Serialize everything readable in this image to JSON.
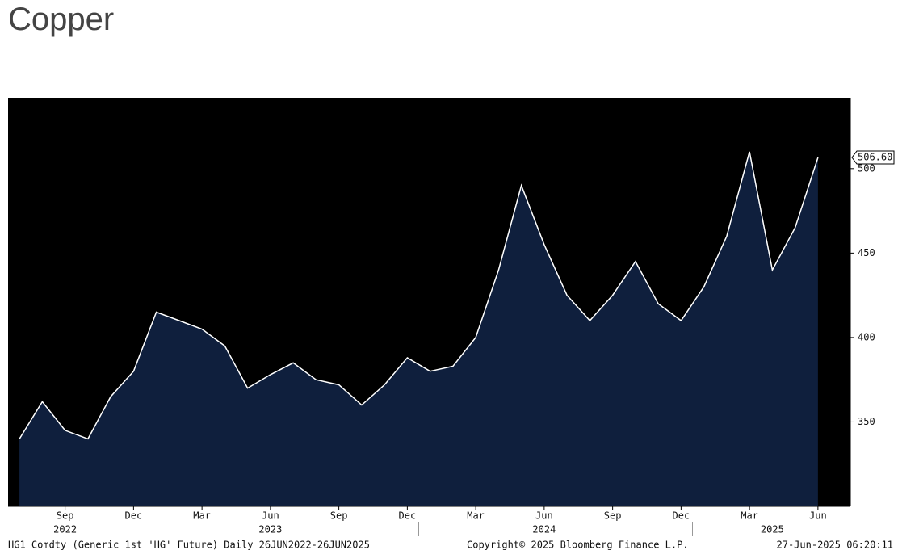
{
  "chart_data": {
    "type": "area",
    "title": "Copper",
    "x": [
      "2022-07",
      "2022-08",
      "2022-09",
      "2022-10",
      "2022-11",
      "2022-12",
      "2023-01",
      "2023-02",
      "2023-03",
      "2023-04",
      "2023-05",
      "2023-06",
      "2023-07",
      "2023-08",
      "2023-09",
      "2023-10",
      "2023-11",
      "2023-12",
      "2024-01",
      "2024-02",
      "2024-03",
      "2024-04",
      "2024-05",
      "2024-06",
      "2024-07",
      "2024-08",
      "2024-09",
      "2024-10",
      "2024-11",
      "2024-12",
      "2025-01",
      "2025-02",
      "2025-03",
      "2025-04",
      "2025-05",
      "2025-06"
    ],
    "values": [
      340,
      362,
      345,
      340,
      365,
      380,
      415,
      410,
      405,
      395,
      370,
      378,
      385,
      375,
      372,
      360,
      372,
      388,
      380,
      383,
      400,
      440,
      490,
      455,
      425,
      410,
      425,
      445,
      420,
      410,
      430,
      460,
      510,
      440,
      465,
      506.6
    ],
    "last_value_label": "506.60",
    "color": "#0f1f3d",
    "line_color": "#ffffff",
    "ylim": [
      300,
      542
    ],
    "yticks": [
      350,
      400,
      450,
      500
    ],
    "xticks": [
      {
        "value": "2022-09",
        "label": "Sep"
      },
      {
        "value": "2022-12",
        "label": "Dec"
      },
      {
        "value": "2023-03",
        "label": "Mar"
      },
      {
        "value": "2023-06",
        "label": "Jun"
      },
      {
        "value": "2023-09",
        "label": "Sep"
      },
      {
        "value": "2023-12",
        "label": "Dec"
      },
      {
        "value": "2024-03",
        "label": "Mar"
      },
      {
        "value": "2024-06",
        "label": "Jun"
      },
      {
        "value": "2024-09",
        "label": "Sep"
      },
      {
        "value": "2024-12",
        "label": "Dec"
      },
      {
        "value": "2025-03",
        "label": "Mar"
      },
      {
        "value": "2025-06",
        "label": "Jun"
      }
    ],
    "year_labels": [
      {
        "value": "2022-09",
        "label": "2022"
      },
      {
        "value": "2023-06",
        "label": "2023"
      },
      {
        "value": "2024-06",
        "label": "2024"
      },
      {
        "value": "2025-04",
        "label": "2025"
      }
    ],
    "footer": {
      "source": "HG1 Comdty (Generic 1st 'HG' Future)  Daily 26JUN2022-26JUN2025",
      "copyright": "Copyright© 2025 Bloomberg Finance L.P.",
      "timestamp": "27-Jun-2025 06:20:11"
    }
  }
}
